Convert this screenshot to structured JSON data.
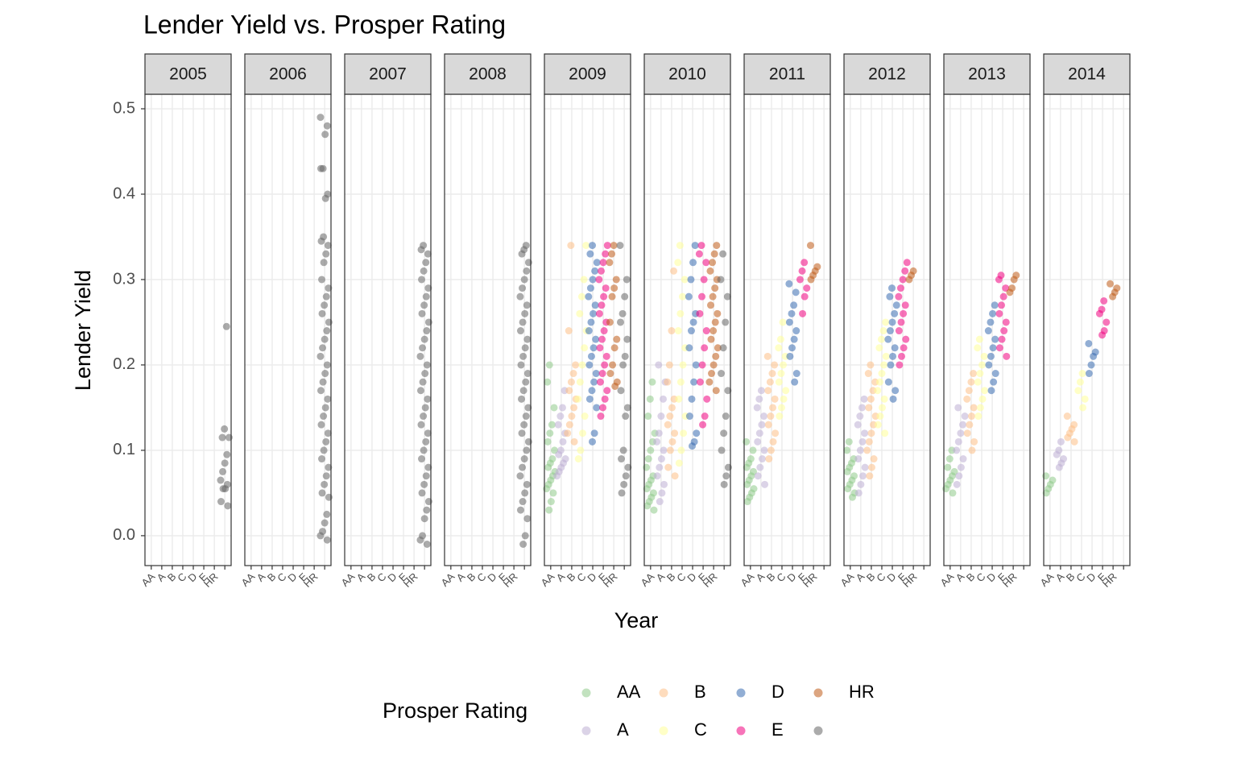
{
  "chart_data": {
    "type": "scatter",
    "title": "Lender Yield vs. Prosper Rating",
    "x_label": "Year",
    "y_label": "Lender Yield",
    "legend_title": "Prosper Rating",
    "categories": [
      "AA",
      "A",
      "B",
      "C",
      "D",
      "E",
      "HR",
      null
    ],
    "ylim": [
      -0.035,
      0.517
    ],
    "yticks": [
      {
        "value": 0,
        "label": "0.0"
      },
      0.1,
      0.2,
      0.3,
      0.4,
      0.5
    ],
    "grid": true,
    "series": [
      {
        "name": "AA",
        "color": "#8fcb8a"
      },
      {
        "name": "A",
        "color": "#beaed4"
      },
      {
        "name": "B",
        "color": "#fdc086"
      },
      {
        "name": "C",
        "color": "#ffff99"
      },
      {
        "name": "D",
        "color": "#386cb0"
      },
      {
        "name": "E",
        "color": "#f0027f"
      },
      {
        "name": "HR",
        "color": "#bf5b17"
      },
      {
        "name": null,
        "color": "#666666"
      }
    ],
    "facets": [
      {
        "label": "2005",
        "values": [
          [],
          [],
          [],
          [],
          [],
          [],
          [],
          [
            0.245,
            0.125,
            0.115,
            0.115,
            0.095,
            0.085,
            0.075,
            0.065,
            0.06,
            0.055,
            0.055,
            0.04,
            0.035
          ]
        ]
      },
      {
        "label": "2006",
        "values": [
          [],
          [],
          [],
          [],
          [],
          [],
          [],
          [
            0.49,
            0.48,
            0.47,
            0.43,
            0.43,
            0.4,
            0.395,
            0.35,
            0.345,
            0.34,
            0.33,
            0.32,
            0.3,
            0.29,
            0.28,
            0.27,
            0.26,
            0.25,
            0.24,
            0.23,
            0.22,
            0.21,
            0.2,
            0.19,
            0.18,
            0.17,
            0.16,
            0.15,
            0.14,
            0.13,
            0.12,
            0.11,
            0.1,
            0.09,
            0.08,
            0.07,
            0.06,
            0.05,
            0.045,
            0.025,
            0.015,
            0.005,
            0,
            -0.005
          ]
        ]
      },
      {
        "label": "2007",
        "values": [
          [],
          [],
          [],
          [],
          [],
          [],
          [],
          [
            0.34,
            0.335,
            0.33,
            0.32,
            0.31,
            0.3,
            0.29,
            0.28,
            0.27,
            0.26,
            0.25,
            0.24,
            0.23,
            0.22,
            0.21,
            0.2,
            0.19,
            0.18,
            0.17,
            0.16,
            0.15,
            0.14,
            0.13,
            0.12,
            0.11,
            0.1,
            0.09,
            0.08,
            0.07,
            0.06,
            0.05,
            0.04,
            0.03,
            0.02,
            0,
            -0.005,
            -0.01
          ]
        ]
      },
      {
        "label": "2008",
        "values": [
          [],
          [],
          [],
          [],
          [],
          [],
          [],
          [
            0.34,
            0.335,
            0.33,
            0.32,
            0.31,
            0.3,
            0.29,
            0.28,
            0.27,
            0.26,
            0.25,
            0.24,
            0.23,
            0.22,
            0.21,
            0.2,
            0.19,
            0.18,
            0.17,
            0.16,
            0.15,
            0.14,
            0.13,
            0.12,
            0.11,
            0.1,
            0.09,
            0.08,
            0.07,
            0.06,
            0.05,
            0.04,
            0.03,
            0.02,
            0,
            -0.01
          ]
        ]
      },
      {
        "label": "2009",
        "values": [
          [
            0.2,
            0.18,
            0.15,
            0.13,
            0.12,
            0.11,
            0.1,
            0.09,
            0.085,
            0.08,
            0.075,
            0.07,
            0.065,
            0.06,
            0.055,
            0.05,
            0.04,
            0.03
          ],
          [
            0.17,
            0.15,
            0.14,
            0.13,
            0.12,
            0.11,
            0.1,
            0.095,
            0.09,
            0.085,
            0.08,
            0.075,
            0.07
          ],
          [
            0.34,
            0.24,
            0.2,
            0.19,
            0.18,
            0.17,
            0.16,
            0.15,
            0.14,
            0.13,
            0.12,
            0.11
          ],
          [
            0.34,
            0.3,
            0.28,
            0.26,
            0.24,
            0.22,
            0.2,
            0.18,
            0.16,
            0.14,
            0.12,
            0.1,
            0.09
          ],
          [
            0.34,
            0.33,
            0.32,
            0.31,
            0.3,
            0.29,
            0.28,
            0.27,
            0.26,
            0.25,
            0.24,
            0.23,
            0.22,
            0.21,
            0.2,
            0.19,
            0.18,
            0.17,
            0.16,
            0.15,
            0.12,
            0.11
          ],
          [
            0.34,
            0.33,
            0.32,
            0.31,
            0.3,
            0.29,
            0.28,
            0.27,
            0.26,
            0.25,
            0.24,
            0.23,
            0.22,
            0.21,
            0.2,
            0.19,
            0.18,
            0.17,
            0.16,
            0.15,
            0.14
          ],
          [
            0.34,
            0.33,
            0.32,
            0.3,
            0.29,
            0.28,
            0.25,
            0.23,
            0.22,
            0.2,
            0.19,
            0.18,
            0.175
          ],
          [
            0.34,
            0.3,
            0.28,
            0.26,
            0.25,
            0.23,
            0.21,
            0.2,
            0.17,
            0.15,
            0.14,
            0.1,
            0.09,
            0.08,
            0.07,
            0.06,
            0.05
          ]
        ]
      },
      {
        "label": "2010",
        "values": [
          [
            0.18,
            0.16,
            0.14,
            0.12,
            0.11,
            0.1,
            0.09,
            0.08,
            0.07,
            0.065,
            0.06,
            0.055,
            0.05,
            0.045,
            0.04,
            0.035,
            0.03
          ],
          [
            0.2,
            0.18,
            0.16,
            0.14,
            0.12,
            0.11,
            0.1,
            0.09,
            0.08,
            0.07,
            0.06,
            0.05,
            0.04
          ],
          [
            0.31,
            0.24,
            0.2,
            0.18,
            0.16,
            0.15,
            0.14,
            0.13,
            0.12,
            0.11,
            0.1,
            0.08,
            0.07
          ],
          [
            0.34,
            0.32,
            0.3,
            0.28,
            0.26,
            0.24,
            0.22,
            0.2,
            0.18,
            0.16,
            0.14,
            0.12,
            0.1,
            0.085
          ],
          [
            0.34,
            0.32,
            0.3,
            0.28,
            0.26,
            0.25,
            0.24,
            0.22,
            0.2,
            0.18,
            0.16,
            0.14,
            0.12,
            0.11,
            0.105
          ],
          [
            0.34,
            0.33,
            0.32,
            0.3,
            0.28,
            0.26,
            0.24,
            0.22,
            0.2,
            0.18,
            0.16,
            0.14,
            0.13
          ],
          [
            0.34,
            0.33,
            0.32,
            0.31,
            0.3,
            0.29,
            0.28,
            0.27,
            0.26,
            0.25,
            0.24,
            0.23,
            0.22,
            0.21,
            0.2,
            0.19,
            0.18,
            0.17
          ],
          [
            0.33,
            0.3,
            0.28,
            0.25,
            0.22,
            0.19,
            0.17,
            0.14,
            0.12,
            0.1,
            0.08,
            0.07,
            0.06
          ]
        ]
      },
      {
        "label": "2011",
        "values": [
          [
            0.11,
            0.1,
            0.09,
            0.085,
            0.08,
            0.075,
            0.07,
            0.065,
            0.06,
            0.055,
            0.05,
            0.045,
            0.04
          ],
          [
            0.17,
            0.16,
            0.15,
            0.14,
            0.13,
            0.12,
            0.11,
            0.1,
            0.09,
            0.08,
            0.07,
            0.06
          ],
          [
            0.21,
            0.2,
            0.19,
            0.18,
            0.17,
            0.16,
            0.15,
            0.14,
            0.13,
            0.12,
            0.11,
            0.1,
            0.09
          ],
          [
            0.25,
            0.23,
            0.22,
            0.21,
            0.2,
            0.19,
            0.18,
            0.17,
            0.16,
            0.15,
            0.14
          ],
          [
            0.295,
            0.285,
            0.27,
            0.26,
            0.25,
            0.24,
            0.23,
            0.22,
            0.21,
            0.19,
            0.18
          ],
          [
            0.32,
            0.31,
            0.3,
            0.29,
            0.28,
            0.26
          ],
          [
            0.34,
            0.315,
            0.31,
            0.305,
            0.3
          ],
          []
        ]
      },
      {
        "label": "2012",
        "values": [
          [
            0.11,
            0.1,
            0.09,
            0.085,
            0.08,
            0.075,
            0.07,
            0.065,
            0.06,
            0.055,
            0.05,
            0.045
          ],
          [
            0.16,
            0.15,
            0.14,
            0.13,
            0.12,
            0.11,
            0.1,
            0.09,
            0.08,
            0.07,
            0.06,
            0.05
          ],
          [
            0.2,
            0.19,
            0.18,
            0.17,
            0.16,
            0.15,
            0.14,
            0.13,
            0.12,
            0.11,
            0.1,
            0.09,
            0.08,
            0.07
          ],
          [
            0.25,
            0.24,
            0.23,
            0.22,
            0.21,
            0.2,
            0.19,
            0.18,
            0.17,
            0.16,
            0.15,
            0.14,
            0.13,
            0.12
          ],
          [
            0.29,
            0.28,
            0.27,
            0.26,
            0.25,
            0.24,
            0.23,
            0.22,
            0.21,
            0.2,
            0.18,
            0.17,
            0.16
          ],
          [
            0.32,
            0.31,
            0.3,
            0.29,
            0.28,
            0.27,
            0.26,
            0.25,
            0.24,
            0.23,
            0.22,
            0.21,
            0.2
          ],
          [
            0.31,
            0.305,
            0.3
          ],
          []
        ]
      },
      {
        "label": "2013",
        "values": [
          [
            0.1,
            0.09,
            0.08,
            0.075,
            0.07,
            0.065,
            0.06,
            0.055,
            0.05
          ],
          [
            0.15,
            0.14,
            0.13,
            0.12,
            0.11,
            0.1,
            0.09,
            0.08,
            0.07,
            0.06
          ],
          [
            0.19,
            0.18,
            0.17,
            0.16,
            0.15,
            0.14,
            0.13,
            0.12,
            0.11,
            0.1
          ],
          [
            0.23,
            0.22,
            0.21,
            0.2,
            0.19,
            0.18,
            0.17,
            0.16,
            0.15,
            0.14
          ],
          [
            0.27,
            0.26,
            0.25,
            0.24,
            0.23,
            0.22,
            0.21,
            0.2,
            0.19,
            0.18,
            0.17
          ],
          [
            0.305,
            0.3,
            0.29,
            0.28,
            0.27,
            0.26,
            0.25,
            0.24,
            0.23,
            0.22,
            0.21
          ],
          [
            0.305,
            0.3,
            0.29,
            0.285
          ],
          []
        ]
      },
      {
        "label": "2014",
        "values": [
          [
            0.07,
            0.065,
            0.06,
            0.055,
            0.05
          ],
          [
            0.11,
            0.1,
            0.095,
            0.09,
            0.085,
            0.08
          ],
          [
            0.14,
            0.13,
            0.125,
            0.12,
            0.115,
            0.11
          ],
          [
            0.19,
            0.18,
            0.17,
            0.16,
            0.15
          ],
          [
            0.225,
            0.215,
            0.21,
            0.2,
            0.19
          ],
          [
            0.275,
            0.265,
            0.26,
            0.25,
            0.24,
            0.235
          ],
          [
            0.295,
            0.29,
            0.285,
            0.28
          ],
          []
        ]
      }
    ]
  }
}
